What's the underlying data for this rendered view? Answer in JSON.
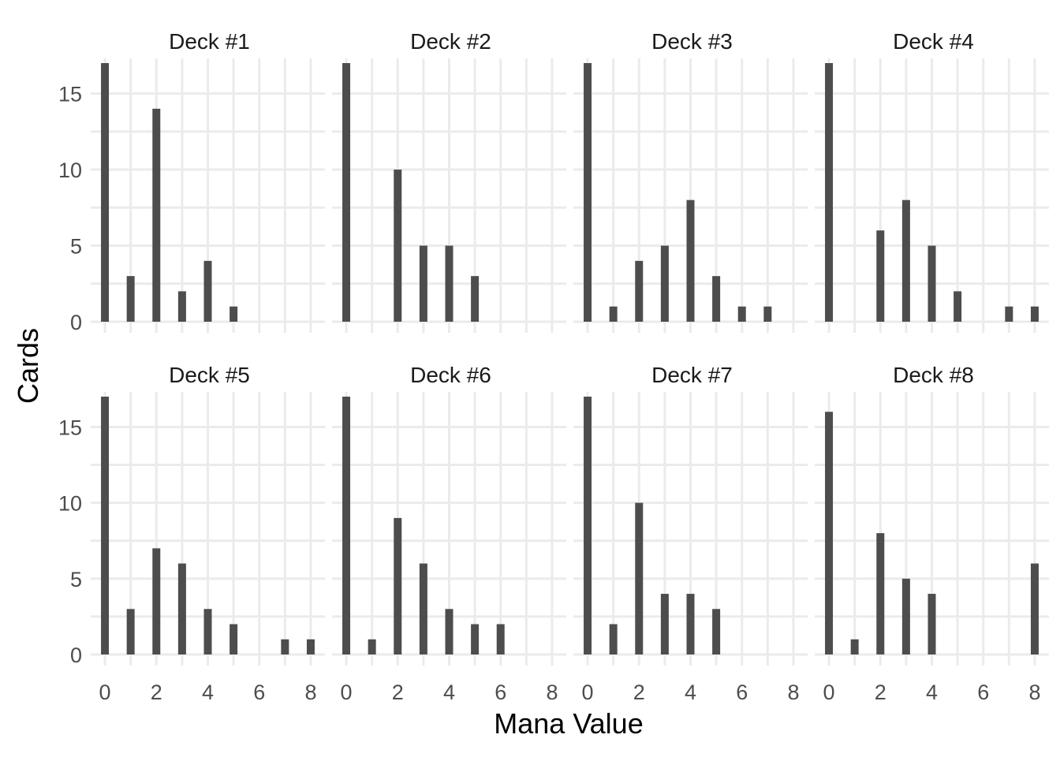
{
  "chart_data": {
    "type": "bar",
    "layout": "facet-grid-2x4",
    "xlabel": "Mana Value",
    "ylabel": "Cards",
    "xlim": [
      -0.4,
      8.4
    ],
    "ylim": [
      0,
      17
    ],
    "x_ticks": [
      0,
      2,
      4,
      6,
      8
    ],
    "y_ticks": [
      0,
      5,
      10,
      15
    ],
    "bar_color": "#4d4d4d",
    "grid_color": "#ebebeb",
    "grid": true,
    "panels": [
      {
        "title": "Deck #1",
        "x": [
          0,
          1,
          2,
          3,
          4,
          5
        ],
        "values": [
          17,
          3,
          14,
          2,
          4,
          1
        ]
      },
      {
        "title": "Deck #2",
        "x": [
          0,
          2,
          3,
          4,
          5
        ],
        "values": [
          17,
          10,
          5,
          5,
          3
        ]
      },
      {
        "title": "Deck #3",
        "x": [
          0,
          1,
          2,
          3,
          4,
          5,
          6,
          7
        ],
        "values": [
          17,
          1,
          4,
          5,
          8,
          3,
          1,
          1
        ]
      },
      {
        "title": "Deck #4",
        "x": [
          0,
          2,
          3,
          4,
          5,
          7,
          8
        ],
        "values": [
          17,
          6,
          8,
          5,
          2,
          1,
          1
        ]
      },
      {
        "title": "Deck #5",
        "x": [
          0,
          1,
          2,
          3,
          4,
          5,
          7,
          8
        ],
        "values": [
          17,
          3,
          7,
          6,
          3,
          2,
          1,
          1
        ]
      },
      {
        "title": "Deck #6",
        "x": [
          0,
          1,
          2,
          3,
          4,
          5,
          6
        ],
        "values": [
          17,
          1,
          9,
          6,
          3,
          2,
          2
        ]
      },
      {
        "title": "Deck #7",
        "x": [
          0,
          1,
          2,
          3,
          4,
          5
        ],
        "values": [
          17,
          2,
          10,
          4,
          4,
          3
        ]
      },
      {
        "title": "Deck #8",
        "x": [
          0,
          1,
          2,
          3,
          4,
          8
        ],
        "values": [
          16,
          1,
          8,
          5,
          4,
          6
        ]
      }
    ]
  }
}
